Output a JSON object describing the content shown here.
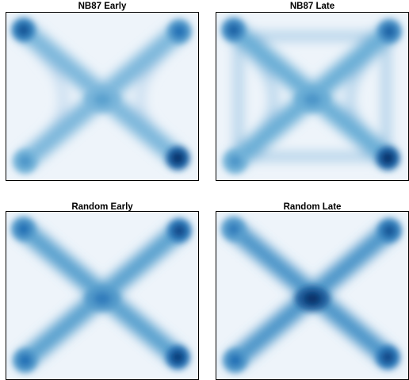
{
  "chart_data": [
    {
      "type": "heatmap",
      "title": "NB87 Early",
      "colormap": "Blues",
      "pattern": "x-shaped density with strong corners and curved side arcs",
      "corners": {
        "top-left": 0.85,
        "top-right": 0.75,
        "bottom-left": 0.6,
        "bottom-right": 1.0
      },
      "center": 0.55,
      "diagonal_strength": 0.45,
      "side_arcs": 0.28,
      "border_frame": 0.0
    },
    {
      "type": "heatmap",
      "title": "NB87 Late",
      "colormap": "Blues",
      "pattern": "x-shaped density with square frame and inner arcs",
      "corners": {
        "top-left": 0.8,
        "top-right": 0.8,
        "bottom-left": 0.6,
        "bottom-right": 1.0
      },
      "center": 0.6,
      "diagonal_strength": 0.5,
      "side_arcs": 0.35,
      "border_frame": 0.35
    },
    {
      "type": "heatmap",
      "title": "Random Early",
      "colormap": "Blues",
      "pattern": "x-shaped density",
      "corners": {
        "top-left": 0.75,
        "top-right": 0.9,
        "bottom-left": 0.75,
        "bottom-right": 0.95
      },
      "center": 0.7,
      "diagonal_strength": 0.55,
      "side_arcs": 0.0,
      "border_frame": 0.0
    },
    {
      "type": "heatmap",
      "title": "Random Late",
      "colormap": "Blues",
      "pattern": "x-shaped density with dark center",
      "corners": {
        "top-left": 0.7,
        "top-right": 0.85,
        "bottom-left": 0.75,
        "bottom-right": 0.9
      },
      "center": 1.0,
      "diagonal_strength": 0.6,
      "side_arcs": 0.0,
      "border_frame": 0.0
    }
  ]
}
